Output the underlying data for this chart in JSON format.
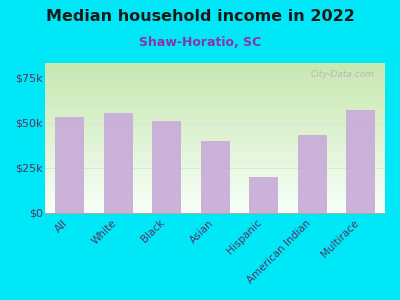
{
  "title": "Median household income in 2022",
  "subtitle": "Shaw-Horatio, SC",
  "categories": [
    "All",
    "White",
    "Black",
    "Asian",
    "Hispanic",
    "American Indian",
    "Multirace"
  ],
  "values": [
    53000,
    55500,
    51000,
    40000,
    20000,
    43000,
    57000
  ],
  "bar_color": "#c9aed8",
  "background_outer": "#00e8f8",
  "background_inner_topleft": "#c8e8b0",
  "background_inner_bottomright": "#f8fff8",
  "title_color": "#1a1a1a",
  "subtitle_color": "#8833aa",
  "tick_label_color": "#5a3060",
  "ylim": [
    0,
    83000
  ],
  "yticks": [
    0,
    25000,
    50000,
    75000
  ],
  "ytick_labels": [
    "$0",
    "$25k",
    "$50k",
    "$75k"
  ],
  "watermark": "City-Data.com",
  "grid_color": "#dddddd"
}
